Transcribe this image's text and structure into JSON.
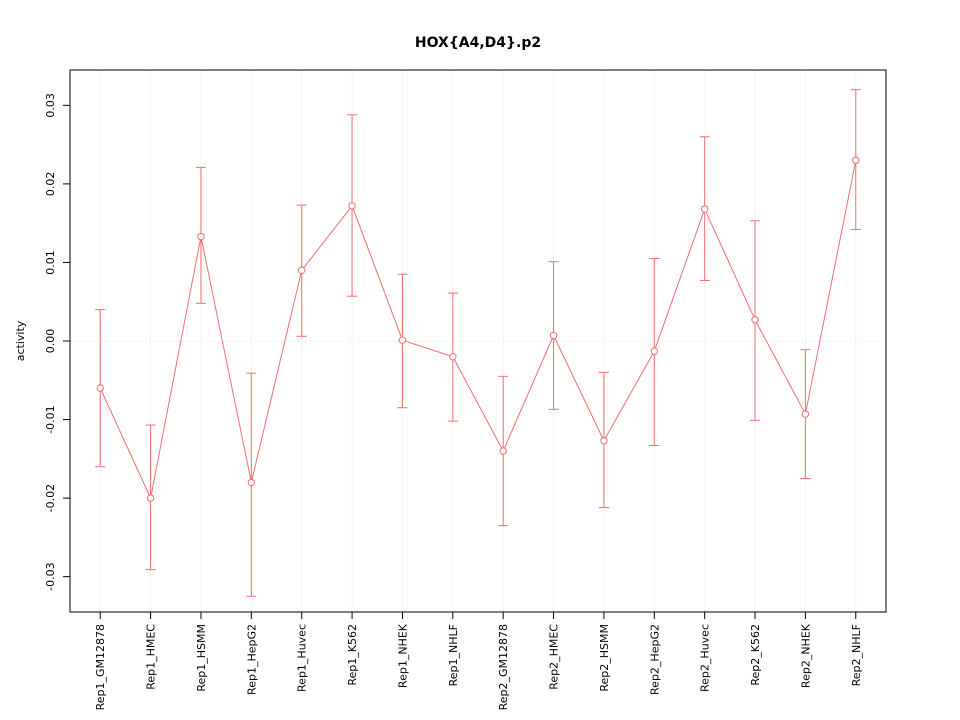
{
  "chart_data": {
    "type": "line",
    "title": "HOX{A4,D4}.p2",
    "xlabel": "",
    "ylabel": "activity",
    "ylim": [
      -0.0345,
      0.0345
    ],
    "yticks": [
      -0.03,
      -0.02,
      -0.01,
      0.0,
      0.01,
      0.02,
      0.03
    ],
    "ytick_labels": [
      "-0.03",
      "-0.02",
      "-0.01",
      "0.00",
      "0.01",
      "0.02",
      "0.03"
    ],
    "grid": true,
    "legend": "none",
    "line_color": "#F26D6D",
    "grid_color": "#D8D8D8",
    "categories": [
      "Rep1_GM12878",
      "Rep1_HMEC",
      "Rep1_HSMM",
      "Rep1_HepG2",
      "Rep1_Huvec",
      "Rep1_K562",
      "Rep1_NHEK",
      "Rep1_NHLF",
      "Rep2_GM12878",
      "Rep2_HMEC",
      "Rep2_HSMM",
      "Rep2_HepG2",
      "Rep2_Huvec",
      "Rep2_K562",
      "Rep2_NHEK",
      "Rep2_NHLF"
    ],
    "series": [
      {
        "name": "activity",
        "values": [
          -0.006,
          -0.02,
          0.0133,
          -0.018,
          0.009,
          0.0172,
          0.0001,
          -0.002,
          -0.014,
          0.0007,
          -0.0127,
          -0.0013,
          0.0168,
          0.0027,
          -0.0093,
          0.023
        ],
        "err_low": [
          -0.016,
          -0.0291,
          0.0048,
          -0.0325,
          0.0006,
          0.0057,
          -0.0085,
          -0.0102,
          -0.0235,
          -0.0087,
          -0.0212,
          -0.0133,
          0.0077,
          -0.0101,
          -0.0175,
          0.0142
        ],
        "err_high": [
          0.004,
          -0.0107,
          0.0221,
          -0.0041,
          0.0173,
          0.0288,
          0.0085,
          0.0061,
          -0.0045,
          0.0101,
          -0.004,
          0.0105,
          0.026,
          0.0153,
          -0.0011,
          0.032
        ]
      }
    ]
  }
}
